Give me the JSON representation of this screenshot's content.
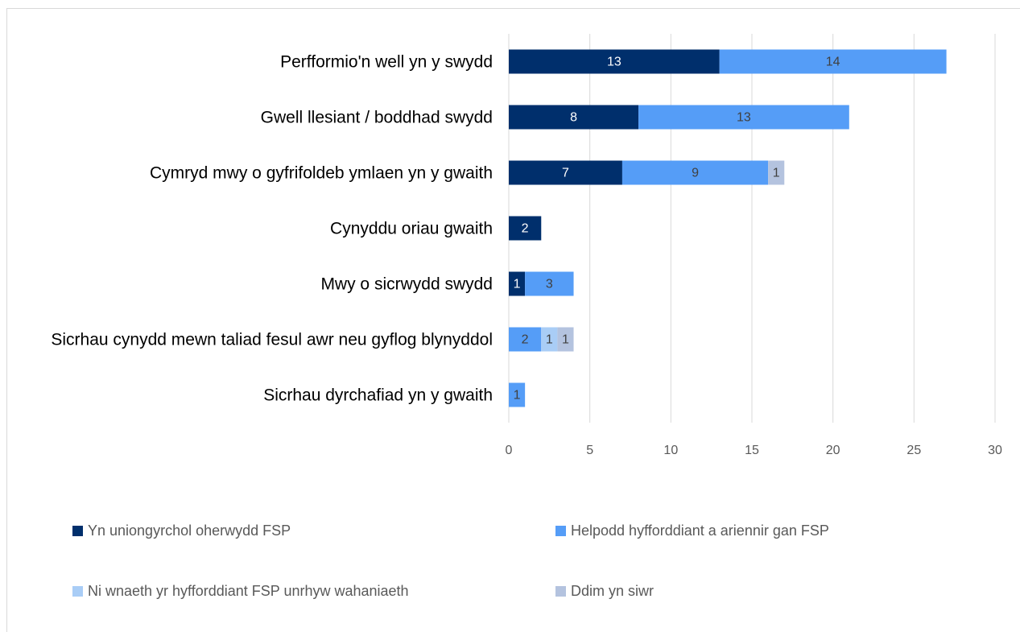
{
  "chart_data": {
    "type": "stacked_barh",
    "categories": [
      "Perfformio'n well yn y swydd",
      "Gwell llesiant / boddhad swydd",
      "Cymryd mwy o gyfrifoldeb ymlaen yn y gwaith",
      "Cynyddu oriau gwaith",
      "Mwy o sicrwydd swydd",
      "Sicrhau cynydd mewn taliad fesul awr neu gyflog blynyddol",
      "Sicrhau dyrchafiad yn y gwaith"
    ],
    "series": [
      {
        "name": "Yn uniongyrchol oherwydd FSP",
        "color": "#002f6c",
        "values": [
          13,
          8,
          7,
          2,
          1,
          null,
          null
        ]
      },
      {
        "name": "Helpodd hyfforddiant a ariennir gan FSP",
        "color": "#559df7",
        "values": [
          14,
          13,
          9,
          null,
          3,
          2,
          1
        ]
      },
      {
        "name": "Ni wnaeth yr hyfforddiant FSP unrhyw wahaniaeth",
        "color": "#a9cdf6",
        "values": [
          null,
          null,
          null,
          null,
          null,
          1,
          null
        ]
      },
      {
        "name": "Ddim yn siwr",
        "color": "#b4c3df",
        "values": [
          null,
          null,
          1,
          null,
          null,
          1,
          null
        ]
      }
    ],
    "xlim": [
      0,
      30
    ],
    "xticks": [
      0,
      5,
      10,
      15,
      20,
      25,
      30
    ],
    "grid": true,
    "legend": "bottom"
  }
}
